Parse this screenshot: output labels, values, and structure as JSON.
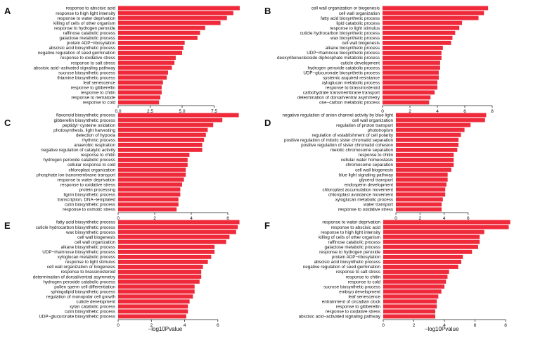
{
  "chart_data": [
    {
      "panel": "A",
      "type": "bar",
      "orientation": "horizontal",
      "categories": [
        "response to abscisic acid",
        "response to high light intensity",
        "response to water deprivation",
        "killing of cells of other organism",
        "response to hydrogen peroxide",
        "raffinose catabolic process",
        "galactose metabolic process",
        "protein ADP−ribosylation",
        "abscisic acid biosynthetic process",
        "negative regulation of seed germination",
        "response to oxidative stress",
        "response to salt stress",
        "abscisic acid−activated signaling pathway",
        "sucrose biosynthetic process",
        "thiamine biosynthetic process",
        "leaf senescence",
        "response to gibberellin",
        "response to chitin",
        "response to nematode",
        "response to cold"
      ],
      "values": [
        9.5,
        9.0,
        8.5,
        8.0,
        6.8,
        6.4,
        6.2,
        5.2,
        5.1,
        5.0,
        4.5,
        4.4,
        4.2,
        3.9,
        3.8,
        3.5,
        3.4,
        3.4,
        3.3,
        3.2
      ],
      "xlim": [
        0,
        10
      ],
      "xticks": [
        "0.0",
        "2.5",
        "5.0",
        "7.5"
      ],
      "xtick_values": [
        0,
        2.5,
        5,
        7.5
      ],
      "xlabel": ""
    },
    {
      "panel": "B",
      "type": "bar",
      "orientation": "horizontal",
      "categories": [
        "cell wall organization or biogenesis",
        "cell wall organization",
        "fatty acid biosynthetic process",
        "lipid catabolic process",
        "response to light stimulus",
        "cuticle hydrocarbon biosynthetic process",
        "wax biosynthetic process",
        "cell wall biogenesis",
        "alkane biosynthetic process",
        "UDP−rhamnose biosynthetic process",
        "deoxyribonucleoside diphosphate metabolic process",
        "cuticle development",
        "hydrogen peroxide catabolic process",
        "UDP−glucuronate biosynthetic process",
        "systemic acquired resistance",
        "xyloglucan metabolic process",
        "response to brassinosteroid",
        "carbohydrate transmembrane transport",
        "determination of dorsal/ventral asymmetry",
        "one−carbon metabolic process"
      ],
      "values": [
        7.7,
        7.4,
        7.0,
        5.8,
        5.6,
        5.3,
        5.1,
        5.0,
        4.4,
        4.3,
        4.3,
        4.2,
        4.2,
        4.1,
        4.1,
        4.0,
        4.0,
        3.8,
        3.5,
        3.4
      ],
      "xlim": [
        0,
        8
      ],
      "xticks": [
        "0",
        "2",
        "4",
        "6",
        "8"
      ],
      "xtick_values": [
        0,
        2,
        4,
        6,
        8
      ],
      "xlabel": ""
    },
    {
      "panel": "C",
      "type": "bar",
      "orientation": "horizontal",
      "categories": [
        "flavonoid biosynthetic process",
        "gibberellin biosynthetic process",
        "peptidyl−cysteine oxidation",
        "photosynthesis, light harvesting",
        "detection of hypoxia",
        "rhythmic process",
        "anaerobic respiration",
        "negative regulation of catalytic activity",
        "response to chitin",
        "hydrogen peroxide catabolic process",
        "cellular response to cold",
        "chloroplast organization",
        "phosphate ion transmembrane transport",
        "response to water deprivation",
        "response to oxidative stress",
        "protein processing",
        "lignin biosynthetic process",
        "transcription, DNA−templated",
        "cutin biosynthetic process",
        "response to osmotic stress"
      ],
      "values": [
        6.6,
        5.7,
        5.2,
        4.9,
        4.8,
        4.7,
        4.6,
        4.6,
        3.9,
        3.8,
        3.8,
        3.7,
        3.7,
        3.6,
        3.5,
        3.4,
        3.4,
        3.3,
        3.3,
        3.2
      ],
      "xlim": [
        0,
        7
      ],
      "xticks": [
        "0",
        "2",
        "4",
        "6"
      ],
      "xtick_values": [
        0,
        2,
        4,
        6
      ],
      "xlabel": ""
    },
    {
      "panel": "D",
      "type": "bar",
      "orientation": "horizontal",
      "categories": [
        "negative regulation of anion channel activity by blue light",
        "cell wall organization",
        "regulation of proton transport",
        "phototropism",
        "regulation of establishment of cell polarity",
        "positive regulation of mitotic sister chromatid separation",
        "positive regulation of sister chromatid cohesion",
        "meiotic chromosome separation",
        "response to chitin",
        "cellular water homeostasis",
        "chromosome separation",
        "cell wall biogenesis",
        "blue light signaling pathway",
        "glycerol transport",
        "endosperm development",
        "chloroplast accumulation movement",
        "chloroplast avoidance movement",
        "xyloglucan metabolic process",
        "water transport",
        "response to oxidative stress"
      ],
      "values": [
        7.5,
        7.4,
        6.2,
        5.7,
        5.4,
        5.2,
        5.2,
        5.1,
        4.8,
        4.8,
        4.8,
        4.6,
        4.3,
        4.3,
        4.2,
        4.1,
        4.1,
        3.9,
        3.8,
        3.8
      ],
      "xlim": [
        0,
        8
      ],
      "xticks": [
        "0",
        "2",
        "4",
        "6"
      ],
      "xtick_values": [
        0,
        2,
        4,
        6
      ],
      "xlabel": ""
    },
    {
      "panel": "E",
      "type": "bar",
      "orientation": "horizontal",
      "categories": [
        "fatty acid biosynthetic process",
        "cuticle hydrocarbon biosynthetic process",
        "wax biosynthetic process",
        "cell wall biogenesis",
        "cell wall organization",
        "alkane biosynthetic process",
        "UDP−rhamnose biosynthetic process",
        "xyloglucan metabolic process",
        "response to light stimulus",
        "cell wall organization or biogenesis",
        "response to brassinosteroid",
        "determination of dorsal/ventral asymmetry",
        "hydrogen peroxide catabolic process",
        "pollen sperm cell differentiation",
        "sphingolipid biosynthetic process",
        "regulation of monopolar cell growth",
        "cuticle development",
        "xylan catabolic process",
        "cutin biosynthetic process",
        "UDP−glucuronate biosynthetic process"
      ],
      "values": [
        7.3,
        7.2,
        7.1,
        6.7,
        6.5,
        5.8,
        5.8,
        5.6,
        5.4,
        5.1,
        5.0,
        5.0,
        4.9,
        4.6,
        4.6,
        4.5,
        4.3,
        4.2,
        4.2,
        4.1
      ],
      "xlim": [
        0,
        7.7
      ],
      "xticks": [
        "0",
        "2",
        "4",
        "6"
      ],
      "xtick_values": [
        0,
        2,
        4,
        6
      ],
      "xlabel": "−log10Pvalue"
    },
    {
      "panel": "F",
      "type": "bar",
      "orientation": "horizontal",
      "categories": [
        "response to water deprivation",
        "response to abscisic acid",
        "response to high light intensity",
        "killing of cells of other organism",
        "raffinose catabolic process",
        "galactose metabolic process",
        "response to hydrogen peroxide",
        "protein ADP−ribosylation",
        "abscisic acid biosynthetic process",
        "negative regulation of seed germination",
        "response to salt stress",
        "response to chitin",
        "response to cold",
        "sucrose biosynthetic process",
        "embryo development",
        "leaf senescence",
        "entrainment of circadian clock",
        "response to gibberellin",
        "response to oxidative stress",
        "abscisic acid−activated signaling pathway"
      ],
      "values": [
        8.3,
        8.2,
        6.6,
        6.3,
        6.3,
        6.2,
        5.8,
        5.2,
        5.1,
        4.9,
        4.3,
        4.2,
        4.1,
        4.0,
        3.8,
        3.6,
        3.5,
        3.5,
        3.4,
        3.4
      ],
      "xlim": [
        0,
        8.5
      ],
      "xticks": [
        "0",
        "2",
        "4",
        "6",
        "8"
      ],
      "xtick_values": [
        0,
        2,
        4,
        6,
        8
      ],
      "xlabel": "−log10Pvalue"
    }
  ]
}
